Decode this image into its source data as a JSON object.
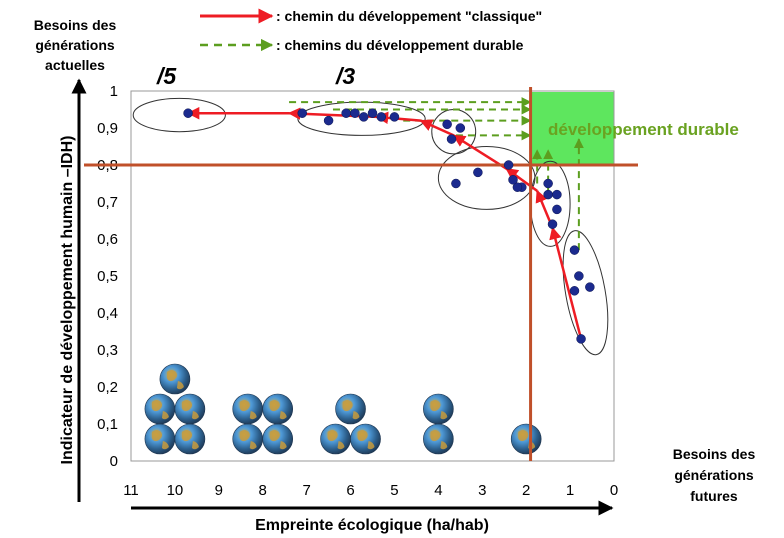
{
  "legend": {
    "classic": ": chemin du développement \"classique\"",
    "durable": ": chemins du développement durable"
  },
  "corner_labels": {
    "top_left": [
      "Besoins des",
      "générations",
      "actuelles"
    ],
    "bottom_right": [
      "Besoins des",
      "générations",
      "futures"
    ]
  },
  "multipliers": [
    "/5",
    "/3"
  ],
  "sustainable_zone_label": "développement durable",
  "colors": {
    "classic_path": "#ee1c24",
    "durable_path": "#5c9e1f",
    "threshold_lines": "#c0502a",
    "sustainable_zone": "#5ee65e",
    "points": "#1b2a8e",
    "zone_label": "#6aa221"
  },
  "chart_data": {
    "type": "scatter",
    "xlabel": "Empreinte écologique (ha/hab)",
    "ylabel": "Indicateur de développement humain –IDH)",
    "xlim": [
      11,
      0
    ],
    "ylim": [
      0,
      1
    ],
    "x_reversed": true,
    "x_ticks": [
      "11",
      "10",
      "9",
      "8",
      "7",
      "6",
      "5",
      "4",
      "3",
      "2",
      "1",
      "0"
    ],
    "y_ticks": [
      "0",
      "0,1",
      "0,2",
      "0,3",
      "0,4",
      "0,5",
      "0,6",
      "0,7",
      "0,8",
      "0,9",
      "1"
    ],
    "thresholds": {
      "x": 1.9,
      "y": 0.8
    },
    "sustainable_zone": {
      "x": [
        0,
        1.9
      ],
      "y": [
        0.8,
        1
      ]
    },
    "series": [
      {
        "points": [
          [
            0.75,
            0.33
          ],
          [
            0.55,
            0.47
          ],
          [
            0.9,
            0.46
          ],
          [
            0.8,
            0.5
          ],
          [
            0.9,
            0.57
          ],
          [
            1.4,
            0.64
          ],
          [
            1.3,
            0.68
          ],
          [
            1.5,
            0.72
          ],
          [
            1.3,
            0.72
          ],
          [
            1.5,
            0.75
          ],
          [
            2.1,
            0.74
          ],
          [
            2.2,
            0.74
          ],
          [
            2.3,
            0.76
          ],
          [
            2.4,
            0.8
          ],
          [
            3.1,
            0.78
          ],
          [
            3.6,
            0.75
          ],
          [
            3.7,
            0.87
          ],
          [
            3.5,
            0.9
          ],
          [
            3.8,
            0.91
          ],
          [
            5.0,
            0.93
          ],
          [
            5.3,
            0.93
          ],
          [
            5.5,
            0.94
          ],
          [
            5.7,
            0.93
          ],
          [
            5.9,
            0.94
          ],
          [
            6.1,
            0.94
          ],
          [
            6.5,
            0.92
          ],
          [
            7.1,
            0.94
          ],
          [
            9.7,
            0.94
          ]
        ]
      }
    ],
    "clusters": [
      {
        "center": [
          0.65,
          0.455
        ],
        "radius": [
          0.45,
          0.17
        ],
        "rotate": -10
      },
      {
        "center": [
          1.45,
          0.695
        ],
        "radius": [
          0.45,
          0.115
        ],
        "rotate": 0
      },
      {
        "center": [
          2.9,
          0.765
        ],
        "radius": [
          1.1,
          0.085
        ],
        "rotate": 0
      },
      {
        "center": [
          3.65,
          0.89
        ],
        "radius": [
          0.5,
          0.06
        ],
        "rotate": 0
      },
      {
        "center": [
          5.75,
          0.925
        ],
        "radius": [
          1.45,
          0.045
        ],
        "rotate": 0
      },
      {
        "center": [
          9.9,
          0.935
        ],
        "radius": [
          1.05,
          0.045
        ],
        "rotate": 0
      }
    ],
    "classic_path": [
      [
        0.75,
        0.33
      ],
      [
        1.4,
        0.63
      ],
      [
        1.75,
        0.73
      ],
      [
        2.45,
        0.79
      ],
      [
        3.65,
        0.88
      ],
      [
        4.4,
        0.92
      ],
      [
        5.4,
        0.93
      ],
      [
        7.4,
        0.94
      ],
      [
        9.7,
        0.94
      ]
    ],
    "durable_paths": [
      {
        "from": [
          0.8,
          0.57
        ],
        "to": [
          0.8,
          0.87
        ]
      },
      {
        "from": [
          1.5,
          0.72
        ],
        "to": [
          1.5,
          0.84
        ]
      },
      {
        "from": [
          1.75,
          0.75
        ],
        "to": [
          1.75,
          0.84
        ]
      },
      {
        "from": [
          3.6,
          0.88
        ],
        "to": [
          1.9,
          0.88
        ]
      },
      {
        "from": [
          4.8,
          0.92
        ],
        "to": [
          1.9,
          0.92
        ]
      },
      {
        "from": [
          6.4,
          0.95
        ],
        "to": [
          1.9,
          0.95
        ]
      },
      {
        "from": [
          7.4,
          0.97
        ],
        "to": [
          1.9,
          0.97
        ]
      }
    ],
    "globes": [
      {
        "x": 10.0,
        "count": 5
      },
      {
        "x": 8.0,
        "count": 4
      },
      {
        "x": 6.0,
        "count": 3
      },
      {
        "x": 4.0,
        "count": 2
      },
      {
        "x": 2.0,
        "count": 1
      }
    ]
  }
}
